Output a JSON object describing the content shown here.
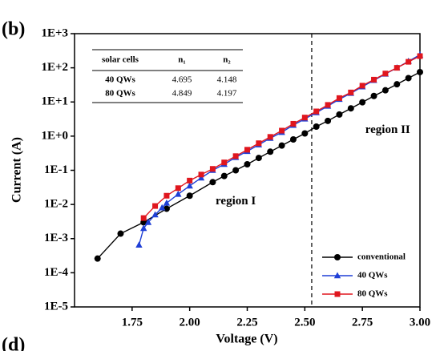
{
  "chart_data": {
    "type": "line",
    "panel_label": "(b)",
    "next_panel_label": "(d)",
    "xlabel": "Voltage (V)",
    "ylabel": "Current (A)",
    "xlim": [
      1.5,
      3.0
    ],
    "xticks": [
      1.75,
      {
        "value": 2,
        "label": "2.00"
      },
      2.25,
      {
        "value": 2.5,
        "label": "2.50"
      },
      2.75,
      {
        "value": 3,
        "label": "3.00"
      }
    ],
    "ylog": true,
    "ylim": [
      1e-05,
      1000
    ],
    "yticks": [
      {
        "value": 1e-05,
        "label": "1E-5"
      },
      {
        "value": 0.0001,
        "label": "1E-4"
      },
      {
        "value": 0.001,
        "label": "1E-3"
      },
      {
        "value": 0.01,
        "label": "1E-2"
      },
      {
        "value": 0.1,
        "label": "1E-1"
      },
      {
        "value": 1,
        "label": "1E+0"
      },
      {
        "value": 10,
        "label": "1E+1"
      },
      {
        "value": 100,
        "label": "1E+2"
      },
      {
        "value": 1000,
        "label": "1E+3"
      }
    ],
    "vline": 2.53,
    "annotations": [
      {
        "text": "region I",
        "x": 2.2,
        "y": 0.012
      },
      {
        "text": "region II",
        "x": 2.86,
        "y": 1.5
      }
    ],
    "legend": "lower right",
    "series": [
      {
        "name": "conventional",
        "color": "#000000",
        "marker": "circle",
        "x": [
          1.6,
          1.7,
          1.8,
          1.9,
          2.0,
          2.1,
          2.15,
          2.2,
          2.25,
          2.3,
          2.35,
          2.4,
          2.45,
          2.5,
          2.55,
          2.6,
          2.65,
          2.7,
          2.75,
          2.8,
          2.85,
          2.9,
          2.95,
          3.0
        ],
        "values": [
          0.00026,
          0.0014,
          0.003,
          0.0075,
          0.018,
          0.045,
          0.068,
          0.1,
          0.15,
          0.23,
          0.35,
          0.53,
          0.8,
          1.2,
          1.9,
          2.8,
          4.3,
          6.5,
          9.8,
          15,
          22,
          33,
          50,
          75
        ]
      },
      {
        "name": "40 QWs",
        "color": "#1f3fd6",
        "marker": "triangle",
        "x": [
          1.78,
          1.8,
          1.82,
          1.85,
          1.88,
          1.9,
          1.95,
          2.0,
          2.05,
          2.1,
          2.15,
          2.2,
          2.25,
          2.3,
          2.35,
          2.4,
          2.45,
          2.5,
          2.55,
          2.6,
          2.65,
          2.7,
          2.75,
          2.8,
          2.85,
          2.9,
          2.95,
          3.0
        ],
        "values": [
          0.00065,
          0.002,
          0.003,
          0.005,
          0.008,
          0.011,
          0.02,
          0.035,
          0.06,
          0.1,
          0.15,
          0.24,
          0.36,
          0.56,
          0.87,
          1.3,
          2.1,
          3.2,
          4.9,
          7.6,
          12,
          18,
          28,
          43,
          66,
          100,
          155,
          240
        ]
      },
      {
        "name": "80 QWs",
        "color": "#e0161e",
        "marker": "square",
        "x": [
          1.8,
          1.85,
          1.9,
          1.95,
          2.0,
          2.05,
          2.1,
          2.15,
          2.2,
          2.25,
          2.3,
          2.35,
          2.4,
          2.45,
          2.5,
          2.55,
          2.6,
          2.65,
          2.7,
          2.75,
          2.8,
          2.85,
          2.9,
          2.95,
          3.0
        ],
        "values": [
          0.004,
          0.009,
          0.018,
          0.03,
          0.05,
          0.075,
          0.11,
          0.17,
          0.26,
          0.4,
          0.62,
          0.95,
          1.45,
          2.3,
          3.5,
          5.3,
          8.2,
          13,
          19,
          30,
          45,
          68,
          100,
          150,
          220
        ]
      }
    ],
    "table": {
      "columns": [
        "solar cells",
        "n₁",
        "n₂"
      ],
      "rows": [
        [
          "40 QWs",
          4.695,
          4.148
        ],
        [
          "80 QWs",
          4.849,
          4.197
        ]
      ]
    }
  }
}
